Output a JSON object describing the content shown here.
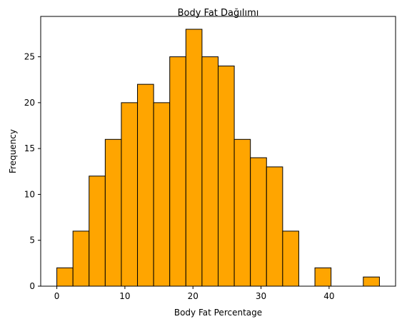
{
  "chart_data": {
    "type": "bar",
    "title": "Body Fat Dağılımı",
    "xlabel": "Body Fat Percentage",
    "ylabel": "Frequency",
    "bin_edges": [
      0.0,
      2.37,
      4.74,
      7.11,
      9.48,
      11.85,
      14.22,
      16.59,
      18.96,
      21.33,
      23.7,
      26.07,
      28.44,
      30.81,
      33.18,
      35.55,
      37.92,
      40.29,
      42.66,
      45.03,
      47.4
    ],
    "values": [
      2,
      6,
      12,
      16,
      20,
      22,
      20,
      25,
      28,
      25,
      24,
      16,
      14,
      13,
      6,
      0,
      2,
      0,
      0,
      1
    ],
    "x_ticks": [
      0,
      10,
      20,
      30,
      40
    ],
    "y_ticks": [
      0,
      5,
      10,
      15,
      20,
      25
    ],
    "xlim": [
      -2.37,
      49.77
    ],
    "ylim": [
      0,
      29.4
    ],
    "grid": false,
    "bar_color": "#ffa500",
    "edge_color": "#000000"
  }
}
